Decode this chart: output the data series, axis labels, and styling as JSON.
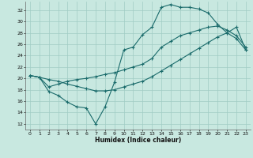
{
  "xlabel": "Humidex (Indice chaleur)",
  "bg_color": "#c8e8e0",
  "grid_color": "#a0ccc4",
  "line_color": "#1a6b6b",
  "xlim": [
    -0.5,
    23.5
  ],
  "ylim": [
    11.0,
    33.5
  ],
  "xticks": [
    0,
    1,
    2,
    3,
    4,
    5,
    6,
    7,
    8,
    9,
    10,
    11,
    12,
    13,
    14,
    15,
    16,
    17,
    18,
    19,
    20,
    21,
    22,
    23
  ],
  "yticks": [
    12,
    14,
    16,
    18,
    20,
    22,
    24,
    26,
    28,
    30,
    32
  ],
  "line1_x": [
    0,
    1,
    2,
    3,
    4,
    5,
    6,
    7,
    8,
    9,
    10,
    11,
    12,
    13,
    14,
    15,
    16,
    17,
    18,
    19,
    20,
    21,
    22,
    23
  ],
  "line1_y": [
    20.5,
    20.2,
    17.7,
    17.0,
    15.8,
    15.0,
    14.8,
    12.0,
    15.0,
    19.3,
    25.0,
    25.5,
    27.7,
    29.0,
    32.5,
    33.0,
    32.5,
    32.5,
    32.2,
    31.5,
    29.5,
    28.0,
    27.0,
    25.0
  ],
  "line2_x": [
    0,
    1,
    2,
    3,
    4,
    5,
    6,
    7,
    8,
    9,
    10,
    11,
    12,
    13,
    14,
    15,
    16,
    17,
    18,
    19,
    20,
    21,
    22,
    23
  ],
  "line2_y": [
    20.5,
    20.2,
    18.5,
    19.0,
    19.5,
    19.8,
    20.0,
    20.3,
    20.7,
    21.0,
    21.5,
    22.0,
    22.5,
    23.5,
    25.5,
    26.5,
    27.5,
    28.0,
    28.5,
    29.0,
    29.2,
    28.5,
    27.5,
    25.5
  ],
  "line3_x": [
    0,
    1,
    2,
    3,
    4,
    5,
    6,
    7,
    8,
    9,
    10,
    11,
    12,
    13,
    14,
    15,
    16,
    17,
    18,
    19,
    20,
    21,
    22,
    23
  ],
  "line3_y": [
    20.5,
    20.2,
    19.8,
    19.5,
    19.0,
    18.6,
    18.2,
    17.8,
    17.8,
    18.0,
    18.5,
    19.0,
    19.5,
    20.3,
    21.3,
    22.3,
    23.3,
    24.3,
    25.3,
    26.3,
    27.3,
    28.0,
    29.0,
    25.0
  ]
}
